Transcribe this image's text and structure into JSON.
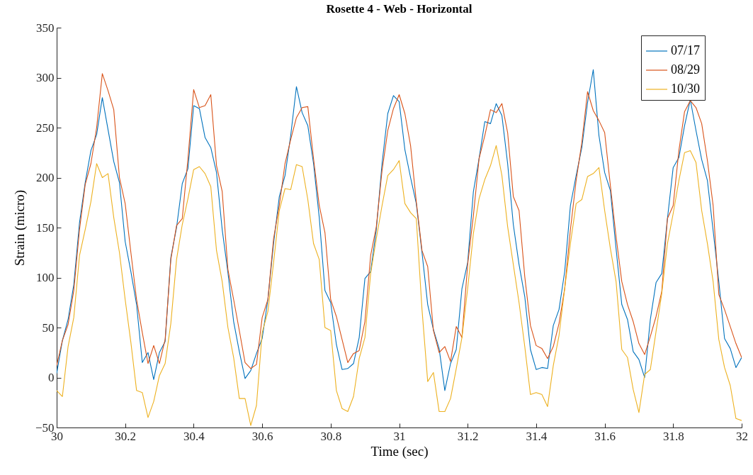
{
  "chart_data": {
    "type": "line",
    "title": "Rosette 4 - Web - Horizontal",
    "xlabel": "Time (sec)",
    "ylabel": "Strain (micro)",
    "legend": "top right",
    "xlim": [
      30,
      32
    ],
    "xticks": [
      30,
      30.2,
      30.4,
      30.6,
      30.8,
      31,
      31.2,
      31.4,
      31.6,
      31.8,
      32
    ],
    "ylim": [
      -50,
      350
    ],
    "yticks": [
      -50,
      0,
      50,
      100,
      150,
      200,
      250,
      300,
      350
    ],
    "x": [
      30,
      30.0167,
      30.0333,
      30.05,
      30.0667,
      30.0833,
      30.1,
      30.1167,
      30.1333,
      30.15,
      30.1667,
      30.1833,
      30.2,
      30.2167,
      30.2333,
      30.25,
      30.2667,
      30.2833,
      30.3,
      30.3167,
      30.3333,
      30.35,
      30.3667,
      30.3833,
      30.4,
      30.4167,
      30.4333,
      30.45,
      30.4667,
      30.4833,
      30.5,
      30.5167,
      30.5333,
      30.55,
      30.5667,
      30.5833,
      30.6,
      30.6167,
      30.6333,
      30.65,
      30.6667,
      30.6833,
      30.7,
      30.7167,
      30.7333,
      30.75,
      30.7667,
      30.7833,
      30.8,
      30.8167,
      30.8333,
      30.85,
      30.8667,
      30.8833,
      30.9,
      30.9167,
      30.9333,
      30.95,
      30.9667,
      30.9833,
      31,
      31.0167,
      31.0333,
      31.05,
      31.0667,
      31.0833,
      31.1,
      31.1167,
      31.1333,
      31.15,
      31.1667,
      31.1833,
      31.2,
      31.2167,
      31.2333,
      31.25,
      31.2667,
      31.2833,
      31.3,
      31.3167,
      31.3333,
      31.35,
      31.3667,
      31.3833,
      31.4,
      31.4167,
      31.4333,
      31.45,
      31.4667,
      31.4833,
      31.5,
      31.5167,
      31.5333,
      31.55,
      31.5667,
      31.5833,
      31.6,
      31.6167,
      31.6333,
      31.65,
      31.6667,
      31.6833,
      31.7,
      31.7167,
      31.7333,
      31.75,
      31.7667,
      31.7833,
      31.8,
      31.8167,
      31.8333,
      31.85,
      31.8667,
      31.8833,
      31.9,
      31.9167,
      31.9333,
      31.95,
      31.9667,
      31.9833,
      32
    ],
    "series": [
      {
        "name": "07/17",
        "color": "#0072bd",
        "values": [
          4,
          37,
          58,
          93,
          155,
          195,
          227,
          243,
          280,
          248,
          216,
          195,
          136,
          106,
          73,
          15,
          25,
          -2,
          25,
          36,
          120,
          150,
          194,
          209,
          272,
          269,
          240,
          230,
          205,
          148,
          105,
          56,
          26,
          -1,
          7,
          24,
          39,
          78,
          134,
          181,
          202,
          242,
          291,
          265,
          252,
          214,
          160,
          87,
          75,
          33,
          8,
          9,
          14,
          40,
          99,
          106,
          148,
          214,
          264,
          282,
          276,
          228,
          200,
          174,
          125,
          73,
          48,
          29,
          -13,
          14,
          28,
          89,
          115,
          186,
          219,
          256,
          254,
          274,
          262,
          214,
          153,
          113,
          81,
          28,
          8,
          10,
          9,
          52,
          68,
          106,
          172,
          202,
          230,
          275,
          308,
          242,
          205,
          187,
          129,
          73,
          58,
          26,
          18,
          0,
          58,
          95,
          104,
          159,
          210,
          220,
          252,
          278,
          247,
          218,
          197,
          147,
          96,
          39,
          29,
          10,
          20
        ]
      },
      {
        "name": "08/29",
        "color": "#d95319",
        "values": [
          12,
          37,
          53,
          87,
          148,
          193,
          214,
          250,
          304,
          287,
          268,
          200,
          174,
          125,
          78,
          45,
          14,
          32,
          14,
          38,
          118,
          152,
          159,
          219,
          288,
          270,
          272,
          283,
          212,
          186,
          108,
          78,
          47,
          15,
          9,
          13,
          60,
          78,
          139,
          172,
          214,
          238,
          260,
          270,
          271,
          219,
          172,
          145,
          78,
          61,
          38,
          15,
          24,
          27,
          56,
          122,
          151,
          207,
          247,
          269,
          283,
          264,
          232,
          176,
          127,
          111,
          47,
          25,
          31,
          16,
          51,
          40,
          113,
          162,
          219,
          242,
          268,
          265,
          274,
          245,
          181,
          167,
          101,
          52,
          32,
          29,
          19,
          31,
          54,
          89,
          148,
          197,
          235,
          286,
          267,
          257,
          245,
          192,
          141,
          96,
          73,
          56,
          34,
          23,
          41,
          61,
          86,
          159,
          172,
          227,
          266,
          277,
          270,
          254,
          217,
          172,
          83,
          68,
          51,
          34,
          20
        ]
      },
      {
        "name": "10/30",
        "color": "#edb120",
        "values": [
          -13,
          -19,
          31,
          60,
          122,
          148,
          176,
          214,
          200,
          204,
          160,
          125,
          78,
          35,
          -13,
          -15,
          -40,
          -24,
          2,
          14,
          54,
          118,
          153,
          179,
          208,
          211,
          204,
          191,
          127,
          96,
          50,
          20,
          -21,
          -21,
          -48,
          -28,
          45,
          66,
          115,
          167,
          189,
          188,
          213,
          211,
          178,
          134,
          118,
          50,
          47,
          -13,
          -31,
          -34,
          -19,
          19,
          40,
          104,
          139,
          172,
          202,
          208,
          217,
          174,
          165,
          159,
          68,
          -4,
          5,
          -34,
          -34,
          -21,
          9,
          40,
          89,
          144,
          179,
          198,
          212,
          232,
          202,
          151,
          113,
          75,
          31,
          -17,
          -15,
          -17,
          -29,
          12,
          42,
          89,
          134,
          174,
          178,
          201,
          204,
          210,
          167,
          129,
          96,
          28,
          20,
          -12,
          -35,
          3,
          8,
          46,
          84,
          134,
          164,
          197,
          225,
          227,
          215,
          167,
          134,
          96,
          38,
          10,
          -8,
          -41,
          -43
        ]
      }
    ]
  }
}
